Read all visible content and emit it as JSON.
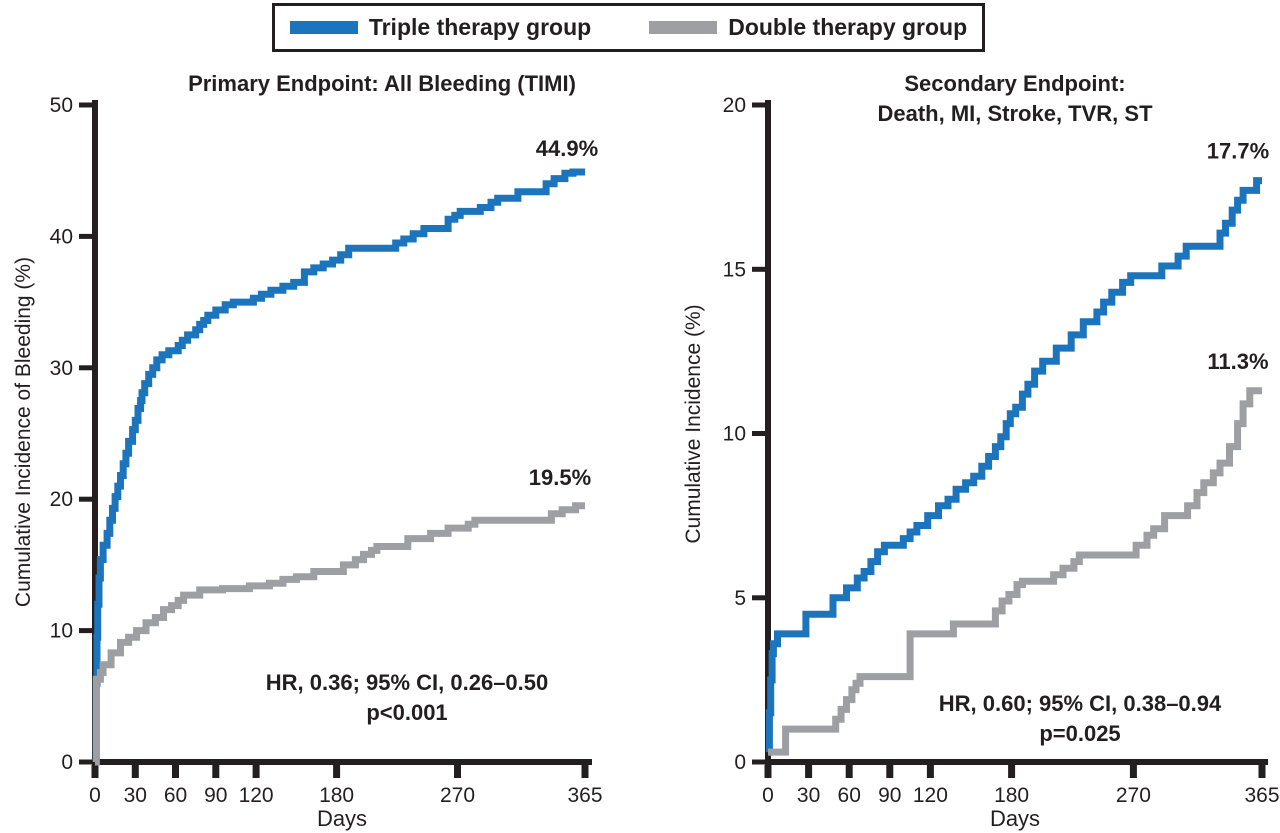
{
  "figure": {
    "background": "#ffffff",
    "text_color": "#231f20",
    "axis_color": "#231f20"
  },
  "legend": {
    "items": [
      {
        "label": "Triple therapy group",
        "color": "#1c75bc"
      },
      {
        "label": "Double therapy group",
        "color": "#9d9fa2"
      }
    ]
  },
  "chart_data": [
    {
      "type": "line",
      "subtype": "step-after",
      "title": "Primary Endpoint: All Bleeding (TIMI)",
      "title_lines": [
        "Primary Endpoint: All Bleeding (TIMI)"
      ],
      "xlabel": "Days",
      "ylabel": "Cumulative Incidence of Bleeding (%)",
      "xlim": [
        0,
        365
      ],
      "ylim": [
        0,
        50
      ],
      "xticks": [
        0,
        30,
        60,
        90,
        120,
        180,
        270,
        365
      ],
      "yticks": [
        0,
        10,
        20,
        30,
        40,
        50
      ],
      "grid": false,
      "annotation_line1": "HR, 0.36; 95% CI, 0.26–0.50",
      "annotation_line2": "p<0.001",
      "series": [
        {
          "name": "Triple therapy group",
          "color": "#1c75bc",
          "end_label": "44.9%",
          "final_value": 44.9,
          "points": [
            [
              0,
              0
            ],
            [
              1,
              6
            ],
            [
              1.5,
              9.5
            ],
            [
              2,
              12
            ],
            [
              3,
              14
            ],
            [
              4,
              15.4
            ],
            [
              6,
              16.5
            ],
            [
              9,
              17.4
            ],
            [
              11,
              18.4
            ],
            [
              13,
              19.3
            ],
            [
              15,
              20.2
            ],
            [
              17,
              21
            ],
            [
              19,
              21.8
            ],
            [
              21,
              22.7
            ],
            [
              23,
              23.5
            ],
            [
              25,
              24.4
            ],
            [
              28,
              25.3
            ],
            [
              30,
              26
            ],
            [
              32,
              26.9
            ],
            [
              34,
              27.5
            ],
            [
              35,
              28.1
            ],
            [
              37,
              28.8
            ],
            [
              40,
              29.5
            ],
            [
              43,
              30
            ],
            [
              46,
              30.6
            ],
            [
              50,
              31
            ],
            [
              55,
              31.3
            ],
            [
              62,
              31.7
            ],
            [
              65,
              32.1
            ],
            [
              69,
              32.5
            ],
            [
              75,
              32.9
            ],
            [
              78,
              33.3
            ],
            [
              81,
              33.6
            ],
            [
              84,
              34
            ],
            [
              90,
              34.4
            ],
            [
              97,
              34.8
            ],
            [
              103,
              35
            ],
            [
              118,
              35.3
            ],
            [
              124,
              35.6
            ],
            [
              131,
              35.9
            ],
            [
              140,
              36.2
            ],
            [
              148,
              36.5
            ],
            [
              156,
              37.3
            ],
            [
              163,
              37.6
            ],
            [
              170,
              37.9
            ],
            [
              177,
              38.2
            ],
            [
              183,
              38.6
            ],
            [
              189,
              39.1
            ],
            [
              224,
              39.5
            ],
            [
              230,
              39.8
            ],
            [
              237,
              40.2
            ],
            [
              245,
              40.6
            ],
            [
              263,
              41.3
            ],
            [
              268,
              41.6
            ],
            [
              272,
              41.9
            ],
            [
              287,
              42.2
            ],
            [
              295,
              42.6
            ],
            [
              300,
              42.9
            ],
            [
              315,
              43.4
            ],
            [
              336,
              44
            ],
            [
              342,
              44.4
            ],
            [
              350,
              44.8
            ],
            [
              356,
              44.9
            ],
            [
              365,
              44.9
            ]
          ]
        },
        {
          "name": "Double therapy group",
          "color": "#9d9fa2",
          "end_label": "19.5%",
          "final_value": 19.5,
          "points": [
            [
              0,
              0
            ],
            [
              1,
              6.3
            ],
            [
              4,
              6.8
            ],
            [
              6,
              7.4
            ],
            [
              12,
              8.3
            ],
            [
              19,
              9.1
            ],
            [
              25,
              9.5
            ],
            [
              31,
              10
            ],
            [
              38,
              10.6
            ],
            [
              45,
              11
            ],
            [
              51,
              11.6
            ],
            [
              57,
              11.9
            ],
            [
              62,
              12.3
            ],
            [
              66,
              12.7
            ],
            [
              78,
              13.1
            ],
            [
              95,
              13.2
            ],
            [
              115,
              13.4
            ],
            [
              130,
              13.6
            ],
            [
              140,
              13.9
            ],
            [
              150,
              14.1
            ],
            [
              163,
              14.5
            ],
            [
              185,
              15
            ],
            [
              194,
              15.4
            ],
            [
              200,
              15.8
            ],
            [
              206,
              16.1
            ],
            [
              210,
              16.4
            ],
            [
              233,
              17
            ],
            [
              250,
              17.4
            ],
            [
              263,
              17.8
            ],
            [
              278,
              18.1
            ],
            [
              283,
              18.4
            ],
            [
              340,
              18.9
            ],
            [
              348,
              19.2
            ],
            [
              358,
              19.5
            ],
            [
              365,
              19.5
            ]
          ]
        }
      ]
    },
    {
      "type": "line",
      "subtype": "step-after",
      "title": "Secondary Endpoint: Death, MI, Stroke, TVR, ST",
      "title_lines": [
        "Secondary Endpoint:",
        "Death, MI, Stroke, TVR, ST"
      ],
      "xlabel": "Days",
      "ylabel": "Cumulative Incidence (%)",
      "xlim": [
        0,
        365
      ],
      "ylim": [
        0,
        20
      ],
      "xticks": [
        0,
        30,
        60,
        90,
        120,
        180,
        270,
        365
      ],
      "yticks": [
        0,
        5,
        10,
        15,
        20
      ],
      "grid": false,
      "annotation_line1": "HR, 0.60; 95% CI, 0.38–0.94",
      "annotation_line2": "p=0.025",
      "series": [
        {
          "name": "Triple therapy group",
          "color": "#1c75bc",
          "end_label": "17.7%",
          "final_value": 17.7,
          "points": [
            [
              0,
              0.3
            ],
            [
              1,
              1.5
            ],
            [
              2,
              2.5
            ],
            [
              3,
              3.3
            ],
            [
              4,
              3.6
            ],
            [
              7,
              3.9
            ],
            [
              28,
              4.5
            ],
            [
              48,
              5
            ],
            [
              58,
              5.3
            ],
            [
              66,
              5.6
            ],
            [
              71,
              5.8
            ],
            [
              76,
              6.1
            ],
            [
              81,
              6.4
            ],
            [
              86,
              6.6
            ],
            [
              100,
              6.8
            ],
            [
              105,
              7
            ],
            [
              110,
              7.2
            ],
            [
              118,
              7.5
            ],
            [
              126,
              7.8
            ],
            [
              133,
              8
            ],
            [
              139,
              8.3
            ],
            [
              146,
              8.5
            ],
            [
              152,
              8.7
            ],
            [
              158,
              9
            ],
            [
              163,
              9.3
            ],
            [
              168,
              9.6
            ],
            [
              172,
              9.9
            ],
            [
              176,
              10.3
            ],
            [
              179,
              10.6
            ],
            [
              183,
              10.8
            ],
            [
              188,
              11.2
            ],
            [
              192,
              11.5
            ],
            [
              197,
              11.9
            ],
            [
              203,
              12.2
            ],
            [
              213,
              12.6
            ],
            [
              224,
              13
            ],
            [
              233,
              13.4
            ],
            [
              243,
              13.7
            ],
            [
              248,
              14
            ],
            [
              254,
              14.3
            ],
            [
              262,
              14.6
            ],
            [
              268,
              14.8
            ],
            [
              291,
              15.1
            ],
            [
              303,
              15.4
            ],
            [
              309,
              15.7
            ],
            [
              334,
              16.1
            ],
            [
              338,
              16.4
            ],
            [
              343,
              16.8
            ],
            [
              347,
              17.1
            ],
            [
              351,
              17.4
            ],
            [
              361,
              17.7
            ],
            [
              365,
              17.7
            ]
          ]
        },
        {
          "name": "Double therapy group",
          "color": "#9d9fa2",
          "end_label": "11.3%",
          "final_value": 11.3,
          "points": [
            [
              0,
              0.3
            ],
            [
              13,
              1
            ],
            [
              50,
              1.3
            ],
            [
              54,
              1.6
            ],
            [
              58,
              1.9
            ],
            [
              62,
              2.2
            ],
            [
              65,
              2.4
            ],
            [
              68,
              2.6
            ],
            [
              105,
              3.9
            ],
            [
              137,
              4.2
            ],
            [
              168,
              4.6
            ],
            [
              173,
              4.9
            ],
            [
              178,
              5.1
            ],
            [
              184,
              5.4
            ],
            [
              188,
              5.5
            ],
            [
              211,
              5.7
            ],
            [
              218,
              5.9
            ],
            [
              226,
              6.1
            ],
            [
              230,
              6.3
            ],
            [
              272,
              6.6
            ],
            [
              280,
              6.9
            ],
            [
              285,
              7.1
            ],
            [
              293,
              7.5
            ],
            [
              310,
              7.8
            ],
            [
              317,
              8.2
            ],
            [
              322,
              8.5
            ],
            [
              329,
              8.8
            ],
            [
              334,
              9.1
            ],
            [
              341,
              9.6
            ],
            [
              347,
              10.3
            ],
            [
              351,
              10.9
            ],
            [
              356,
              11.3
            ],
            [
              365,
              11.3
            ]
          ]
        }
      ]
    }
  ]
}
